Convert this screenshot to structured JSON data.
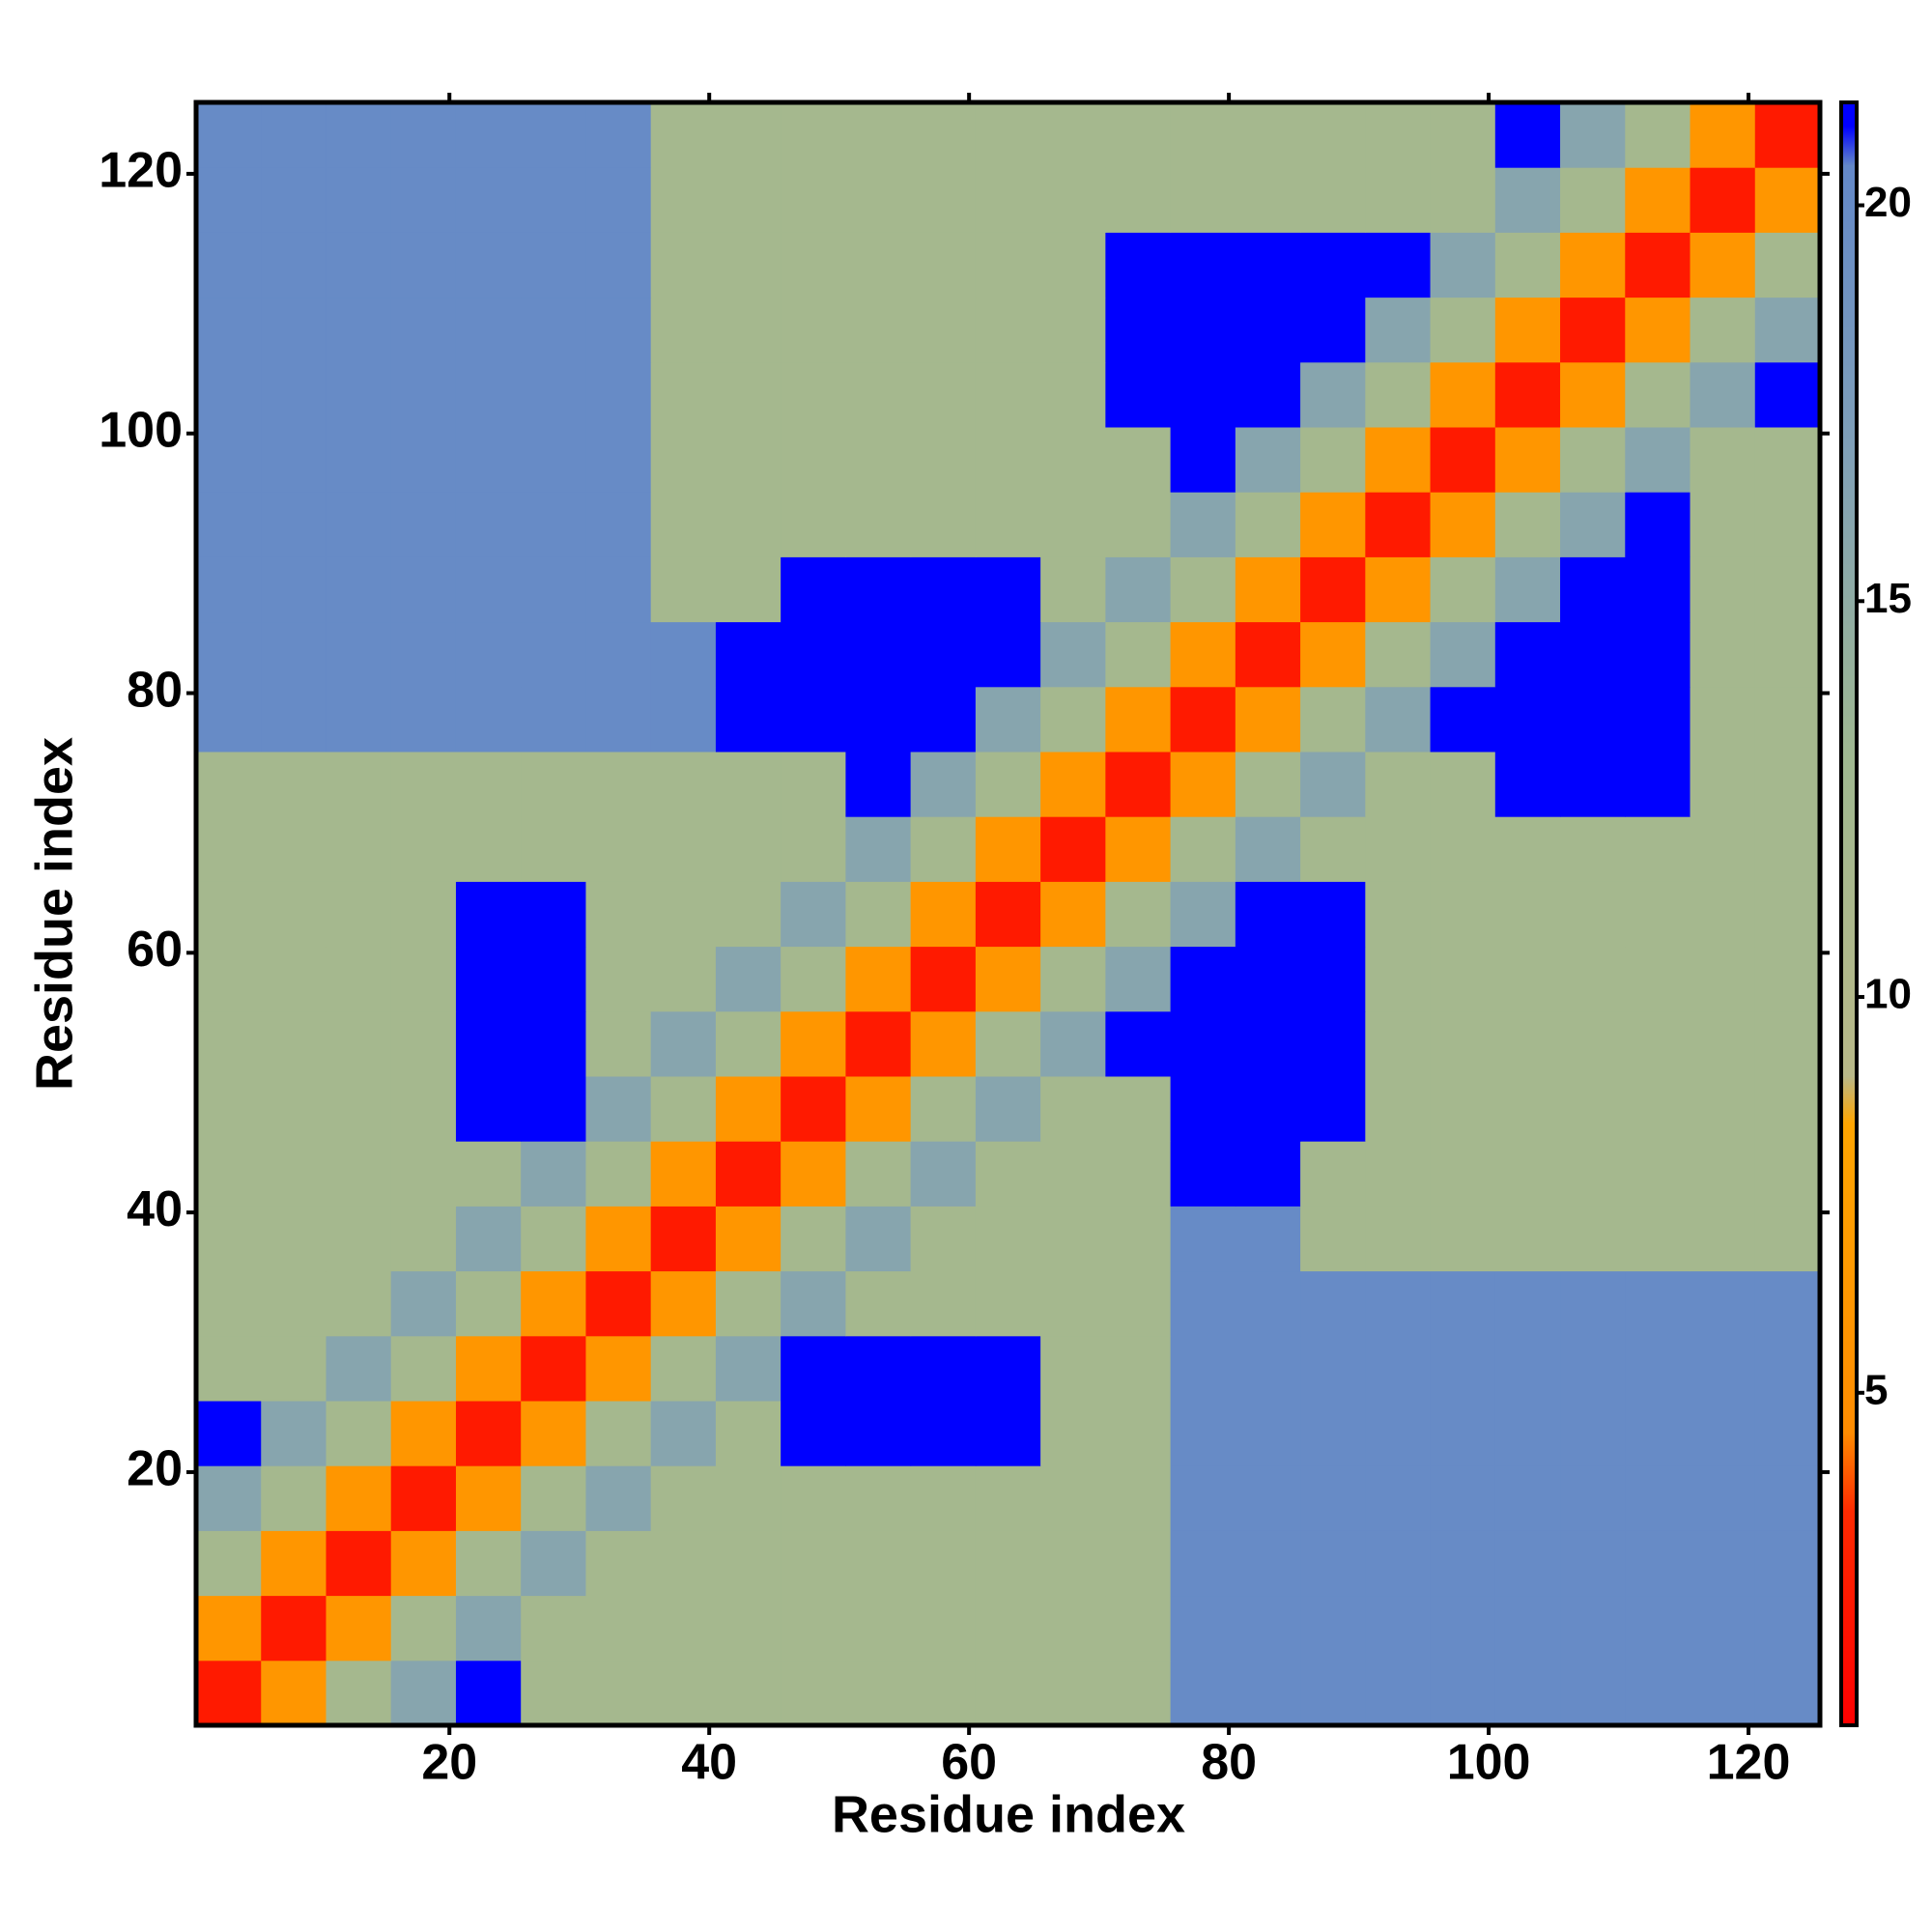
{
  "chart_data": {
    "type": "heatmap",
    "xlabel": "Residue index",
    "ylabel": "Residue index",
    "xlim": [
      0.5,
      125.5
    ],
    "ylim": [
      0.5,
      125.5
    ],
    "xticks": [
      20,
      40,
      60,
      80,
      100,
      120
    ],
    "yticks": [
      20,
      40,
      60,
      80,
      100,
      120
    ],
    "xbins": [
      0.5,
      5.5,
      10.5,
      15.5,
      20.5,
      25.5,
      30.5,
      35.5,
      40.5,
      45.5,
      50.5,
      55.5,
      60.5,
      65.5,
      70.5,
      75.5,
      80.5,
      85.5,
      90.5,
      95.5,
      100.5,
      105.5,
      110.5,
      115.5,
      120.5,
      125.5
    ],
    "ybins": [
      0.5,
      5.5,
      10.5,
      15.5,
      20.5,
      25.5,
      30.5,
      35.5,
      40.5,
      45.5,
      50.5,
      55.5,
      60.5,
      65.5,
      70.5,
      75.5,
      80.5,
      85.5,
      90.5,
      95.5,
      100.5,
      105.5,
      110.5,
      115.5,
      120.5,
      125.5
    ],
    "z": [
      [
        2.5,
        6,
        12,
        16,
        21,
        12,
        12,
        12,
        12,
        12,
        12,
        12,
        12,
        12,
        12,
        20,
        20,
        20,
        20,
        20,
        20,
        20,
        20,
        20,
        20
      ],
      [
        6,
        2.5,
        6,
        12,
        16,
        12,
        12,
        12,
        12,
        12,
        12,
        12,
        12,
        12,
        12,
        20,
        20,
        20,
        20,
        20,
        20,
        20,
        20,
        20,
        20
      ],
      [
        12,
        6,
        2.5,
        6,
        12,
        16,
        12,
        12,
        12,
        12,
        12,
        12,
        12,
        12,
        12,
        20,
        20,
        20,
        20,
        20,
        20,
        20,
        20,
        20,
        20
      ],
      [
        16,
        12,
        6,
        2.5,
        6,
        12,
        16,
        12,
        12,
        12,
        12,
        12,
        12,
        12,
        12,
        20,
        20,
        20,
        20,
        20,
        20,
        20,
        20,
        20,
        20
      ],
      [
        21,
        16,
        12,
        6,
        2.5,
        6,
        12,
        16,
        12,
        21,
        21,
        21,
        21,
        12,
        12,
        20,
        20,
        20,
        20,
        20,
        20,
        20,
        20,
        20,
        20
      ],
      [
        12,
        12,
        16,
        12,
        6,
        2.5,
        6,
        12,
        16,
        21,
        21,
        21,
        21,
        12,
        12,
        20,
        20,
        20,
        20,
        20,
        20,
        20,
        20,
        20,
        20
      ],
      [
        12,
        12,
        12,
        16,
        12,
        6,
        2.5,
        6,
        12,
        16,
        12,
        12,
        12,
        12,
        12,
        20,
        20,
        20,
        20,
        20,
        20,
        20,
        20,
        20,
        20
      ],
      [
        12,
        12,
        12,
        12,
        16,
        12,
        6,
        2.5,
        6,
        12,
        16,
        12,
        12,
        12,
        12,
        20,
        20,
        12,
        12,
        12,
        12,
        12,
        12,
        12,
        12
      ],
      [
        12,
        12,
        12,
        12,
        12,
        16,
        12,
        6,
        2.5,
        6,
        12,
        16,
        12,
        12,
        12,
        21,
        21,
        12,
        12,
        12,
        12,
        12,
        12,
        12,
        12
      ],
      [
        12,
        12,
        12,
        12,
        21,
        21,
        16,
        12,
        6,
        2.5,
        6,
        12,
        16,
        12,
        12,
        21,
        21,
        21,
        12,
        12,
        12,
        12,
        12,
        12,
        12
      ],
      [
        12,
        12,
        12,
        12,
        21,
        21,
        12,
        16,
        12,
        6,
        2.5,
        6,
        12,
        16,
        21,
        21,
        21,
        21,
        12,
        12,
        12,
        12,
        12,
        12,
        12
      ],
      [
        12,
        12,
        12,
        12,
        21,
        21,
        12,
        12,
        16,
        12,
        6,
        2.5,
        6,
        12,
        16,
        21,
        21,
        21,
        12,
        12,
        12,
        12,
        12,
        12,
        12
      ],
      [
        12,
        12,
        12,
        12,
        21,
        21,
        12,
        12,
        12,
        16,
        12,
        6,
        2.5,
        6,
        12,
        16,
        21,
        21,
        12,
        12,
        12,
        12,
        12,
        12,
        12
      ],
      [
        12,
        12,
        12,
        12,
        12,
        12,
        12,
        12,
        12,
        12,
        16,
        12,
        6,
        2.5,
        6,
        12,
        16,
        12,
        12,
        12,
        12,
        12,
        12,
        12,
        12
      ],
      [
        12,
        12,
        12,
        12,
        12,
        12,
        12,
        12,
        12,
        12,
        21,
        16,
        12,
        6,
        2.5,
        6,
        12,
        16,
        12,
        12,
        21,
        21,
        21,
        12,
        12
      ],
      [
        20,
        20,
        20,
        20,
        20,
        20,
        20,
        20,
        21,
        21,
        21,
        21,
        16,
        12,
        6,
        2.5,
        6,
        12,
        16,
        21,
        21,
        21,
        21,
        12,
        12
      ],
      [
        20,
        20,
        20,
        20,
        20,
        20,
        20,
        20,
        21,
        21,
        21,
        21,
        21,
        16,
        12,
        6,
        2.5,
        6,
        12,
        16,
        21,
        21,
        21,
        12,
        12
      ],
      [
        20,
        20,
        20,
        20,
        20,
        20,
        20,
        12,
        12,
        21,
        21,
        21,
        21,
        12,
        16,
        12,
        6,
        2.5,
        6,
        12,
        16,
        21,
        21,
        12,
        12
      ],
      [
        20,
        20,
        20,
        20,
        20,
        20,
        20,
        12,
        12,
        12,
        12,
        12,
        12,
        12,
        12,
        16,
        12,
        6,
        2.5,
        6,
        12,
        16,
        21,
        12,
        12
      ],
      [
        20,
        20,
        20,
        20,
        20,
        20,
        20,
        12,
        12,
        12,
        12,
        12,
        12,
        12,
        12,
        21,
        16,
        12,
        6,
        2.5,
        6,
        12,
        16,
        12,
        12
      ],
      [
        20,
        20,
        20,
        20,
        20,
        20,
        20,
        12,
        12,
        12,
        12,
        12,
        12,
        12,
        21,
        21,
        21,
        16,
        12,
        6,
        2.5,
        6,
        12,
        16,
        21
      ],
      [
        20,
        20,
        20,
        20,
        20,
        20,
        20,
        12,
        12,
        12,
        12,
        12,
        12,
        12,
        21,
        21,
        21,
        21,
        16,
        12,
        6,
        2.5,
        6,
        12,
        16
      ],
      [
        20,
        20,
        20,
        20,
        20,
        20,
        20,
        12,
        12,
        12,
        12,
        12,
        12,
        12,
        21,
        21,
        21,
        21,
        21,
        16,
        12,
        6,
        2.5,
        6,
        12
      ],
      [
        20,
        20,
        20,
        20,
        20,
        20,
        20,
        12,
        12,
        12,
        12,
        12,
        12,
        12,
        12,
        12,
        12,
        12,
        12,
        12,
        16,
        12,
        6,
        2.5,
        6
      ],
      [
        20,
        20,
        20,
        20,
        20,
        20,
        20,
        12,
        12,
        12,
        12,
        12,
        12,
        12,
        12,
        12,
        12,
        12,
        12,
        12,
        21,
        16,
        12,
        6,
        2.5
      ]
    ],
    "colorscale": [
      [
        0.8,
        "#ff0000"
      ],
      [
        3.5,
        "#ff2a00"
      ],
      [
        4.5,
        "#ff8c00"
      ],
      [
        8.4,
        "#ffa500"
      ],
      [
        9,
        "#b8b888"
      ],
      [
        13,
        "#9fb890"
      ],
      [
        17,
        "#7f9fb8"
      ],
      [
        20.5,
        "#6388c8"
      ],
      [
        21,
        "#0000ff"
      ],
      [
        21.3,
        "#0000ff"
      ]
    ],
    "clim": [
      0.8,
      21.3
    ],
    "cticks": [
      5,
      10,
      15,
      20
    ]
  }
}
